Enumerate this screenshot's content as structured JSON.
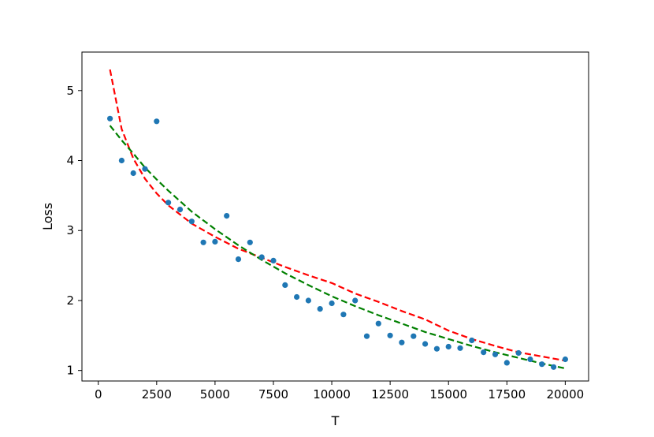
{
  "chart_data": {
    "type": "scatter",
    "title": "",
    "xlabel": "T",
    "ylabel": "Loss",
    "xlim": [
      -700,
      21000
    ],
    "ylim": [
      0.85,
      5.55
    ],
    "xticks": [
      0,
      2500,
      5000,
      7500,
      10000,
      12500,
      15000,
      17500,
      20000
    ],
    "xtick_labels": [
      "0",
      "2500",
      "5000",
      "7500",
      "10000",
      "12500",
      "15000",
      "17500",
      "20000"
    ],
    "yticks": [
      1,
      2,
      3,
      4,
      5
    ],
    "ytick_labels": [
      "1",
      "2",
      "3",
      "4",
      "5"
    ],
    "grid": false,
    "legend": "none",
    "series": [
      {
        "type": "scatter",
        "color": "#1f77b4",
        "points": [
          [
            500,
            4.6
          ],
          [
            1000,
            4.0
          ],
          [
            1500,
            3.82
          ],
          [
            2000,
            3.88
          ],
          [
            2500,
            4.56
          ],
          [
            3000,
            3.4
          ],
          [
            3500,
            3.3
          ],
          [
            4000,
            3.13
          ],
          [
            4500,
            2.83
          ],
          [
            5000,
            2.84
          ],
          [
            5500,
            3.21
          ],
          [
            6000,
            2.59
          ],
          [
            6500,
            2.83
          ],
          [
            7000,
            2.62
          ],
          [
            7500,
            2.57
          ],
          [
            8000,
            2.22
          ],
          [
            8500,
            2.05
          ],
          [
            9000,
            2.0
          ],
          [
            9500,
            1.88
          ],
          [
            10000,
            1.96
          ],
          [
            10500,
            1.8
          ],
          [
            11000,
            2.0
          ],
          [
            11500,
            1.49
          ],
          [
            12000,
            1.67
          ],
          [
            12500,
            1.5
          ],
          [
            13000,
            1.4
          ],
          [
            13500,
            1.49
          ],
          [
            14000,
            1.38
          ],
          [
            14500,
            1.31
          ],
          [
            15000,
            1.34
          ],
          [
            15500,
            1.32
          ],
          [
            16000,
            1.43
          ],
          [
            16500,
            1.26
          ],
          [
            17000,
            1.23
          ],
          [
            17500,
            1.11
          ],
          [
            18000,
            1.25
          ],
          [
            18500,
            1.16
          ],
          [
            19000,
            1.09
          ],
          [
            19500,
            1.05
          ],
          [
            20000,
            1.16
          ]
        ]
      },
      {
        "type": "line",
        "color": "#ff0000",
        "dash": "dashed",
        "points": [
          [
            500,
            5.3
          ],
          [
            1000,
            4.45
          ],
          [
            1500,
            4.03
          ],
          [
            2000,
            3.74
          ],
          [
            2500,
            3.53
          ],
          [
            3000,
            3.36
          ],
          [
            4000,
            3.1
          ],
          [
            5000,
            2.91
          ],
          [
            6000,
            2.74
          ],
          [
            7000,
            2.61
          ],
          [
            8000,
            2.48
          ],
          [
            9000,
            2.36
          ],
          [
            10000,
            2.25
          ],
          [
            11000,
            2.1
          ],
          [
            12000,
            1.98
          ],
          [
            13000,
            1.85
          ],
          [
            14000,
            1.73
          ],
          [
            15000,
            1.57
          ],
          [
            16000,
            1.45
          ],
          [
            17000,
            1.35
          ],
          [
            18000,
            1.26
          ],
          [
            19000,
            1.2
          ],
          [
            20000,
            1.14
          ]
        ]
      },
      {
        "type": "line",
        "color": "#008000",
        "dash": "dashed",
        "points": [
          [
            500,
            4.5
          ],
          [
            1000,
            4.29
          ],
          [
            1500,
            4.1
          ],
          [
            2000,
            3.9
          ],
          [
            2500,
            3.73
          ],
          [
            3000,
            3.57
          ],
          [
            4000,
            3.27
          ],
          [
            5000,
            3.02
          ],
          [
            6000,
            2.79
          ],
          [
            7000,
            2.58
          ],
          [
            8000,
            2.39
          ],
          [
            9000,
            2.22
          ],
          [
            10000,
            2.06
          ],
          [
            11000,
            1.92
          ],
          [
            12000,
            1.79
          ],
          [
            13000,
            1.67
          ],
          [
            14000,
            1.55
          ],
          [
            15000,
            1.45
          ],
          [
            16000,
            1.35
          ],
          [
            17000,
            1.26
          ],
          [
            18000,
            1.18
          ],
          [
            19000,
            1.1
          ],
          [
            20000,
            1.03
          ]
        ]
      }
    ]
  }
}
